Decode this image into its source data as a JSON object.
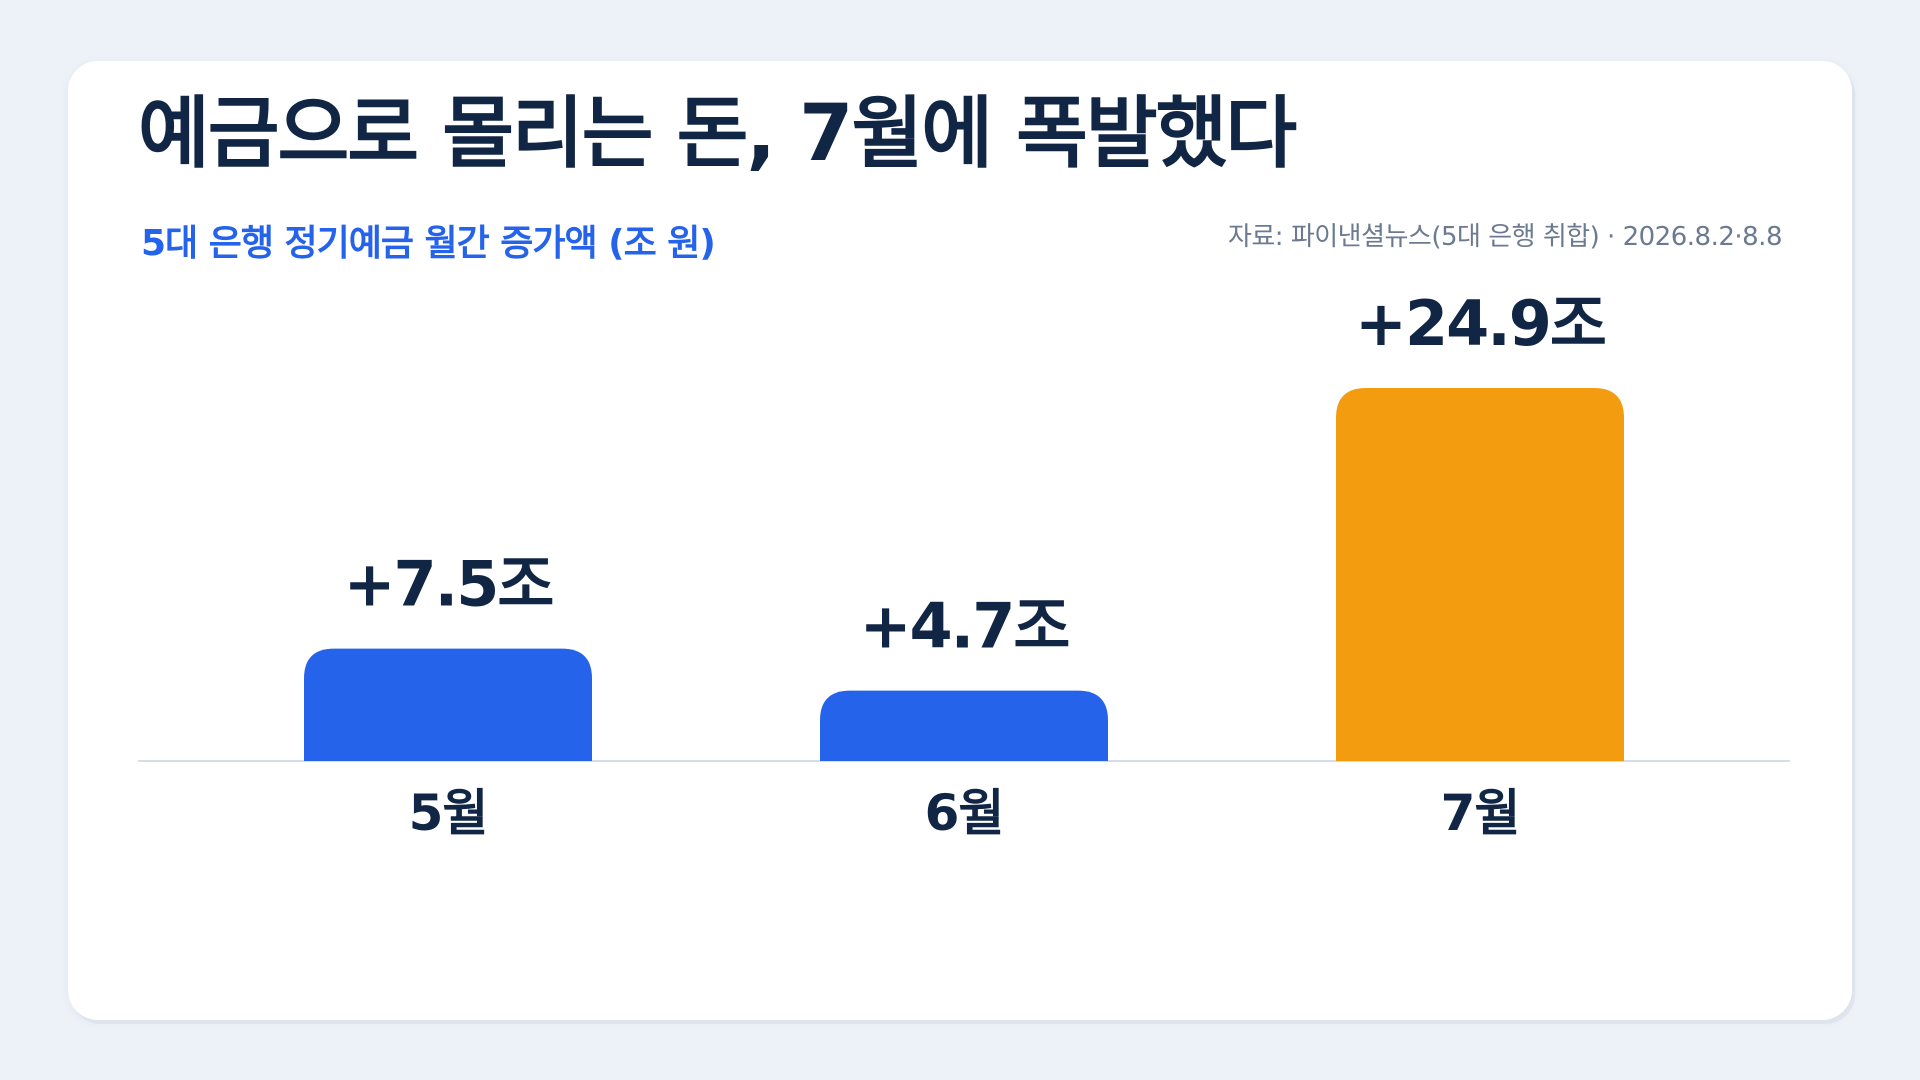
{
  "header": {
    "title": "예금으로 몰리는 돈, 7월에 폭발했다",
    "subtitle": "5대 은행 정기예금 월간 증가액 (조 원)",
    "source": "자료: 파이낸셜뉴스(5대 은행 취합) · 2026.8.2·8.8"
  },
  "chart_data": {
    "type": "bar",
    "title": "예금으로 몰리는 돈, 7월에 폭발했다",
    "subtitle": "5대 은행 정기예금 월간 증가액 (조 원)",
    "categories": [
      "5월",
      "6월",
      "7월"
    ],
    "values": [
      7.5,
      4.7,
      24.9
    ],
    "value_labels": [
      "+7.5조",
      "+4.7조",
      "+24.9조"
    ],
    "bar_colors": [
      "#2563eb",
      "#2563eb",
      "#f39c0f"
    ],
    "ylim": [
      0,
      24.9
    ],
    "grid": false,
    "legend": "none"
  },
  "colors": {
    "background": "#edf1f8",
    "card": "#ffffff",
    "text": "#112645",
    "accent": "#2563eb",
    "highlight": "#f39c0f",
    "baseline": "#d6dde8"
  }
}
